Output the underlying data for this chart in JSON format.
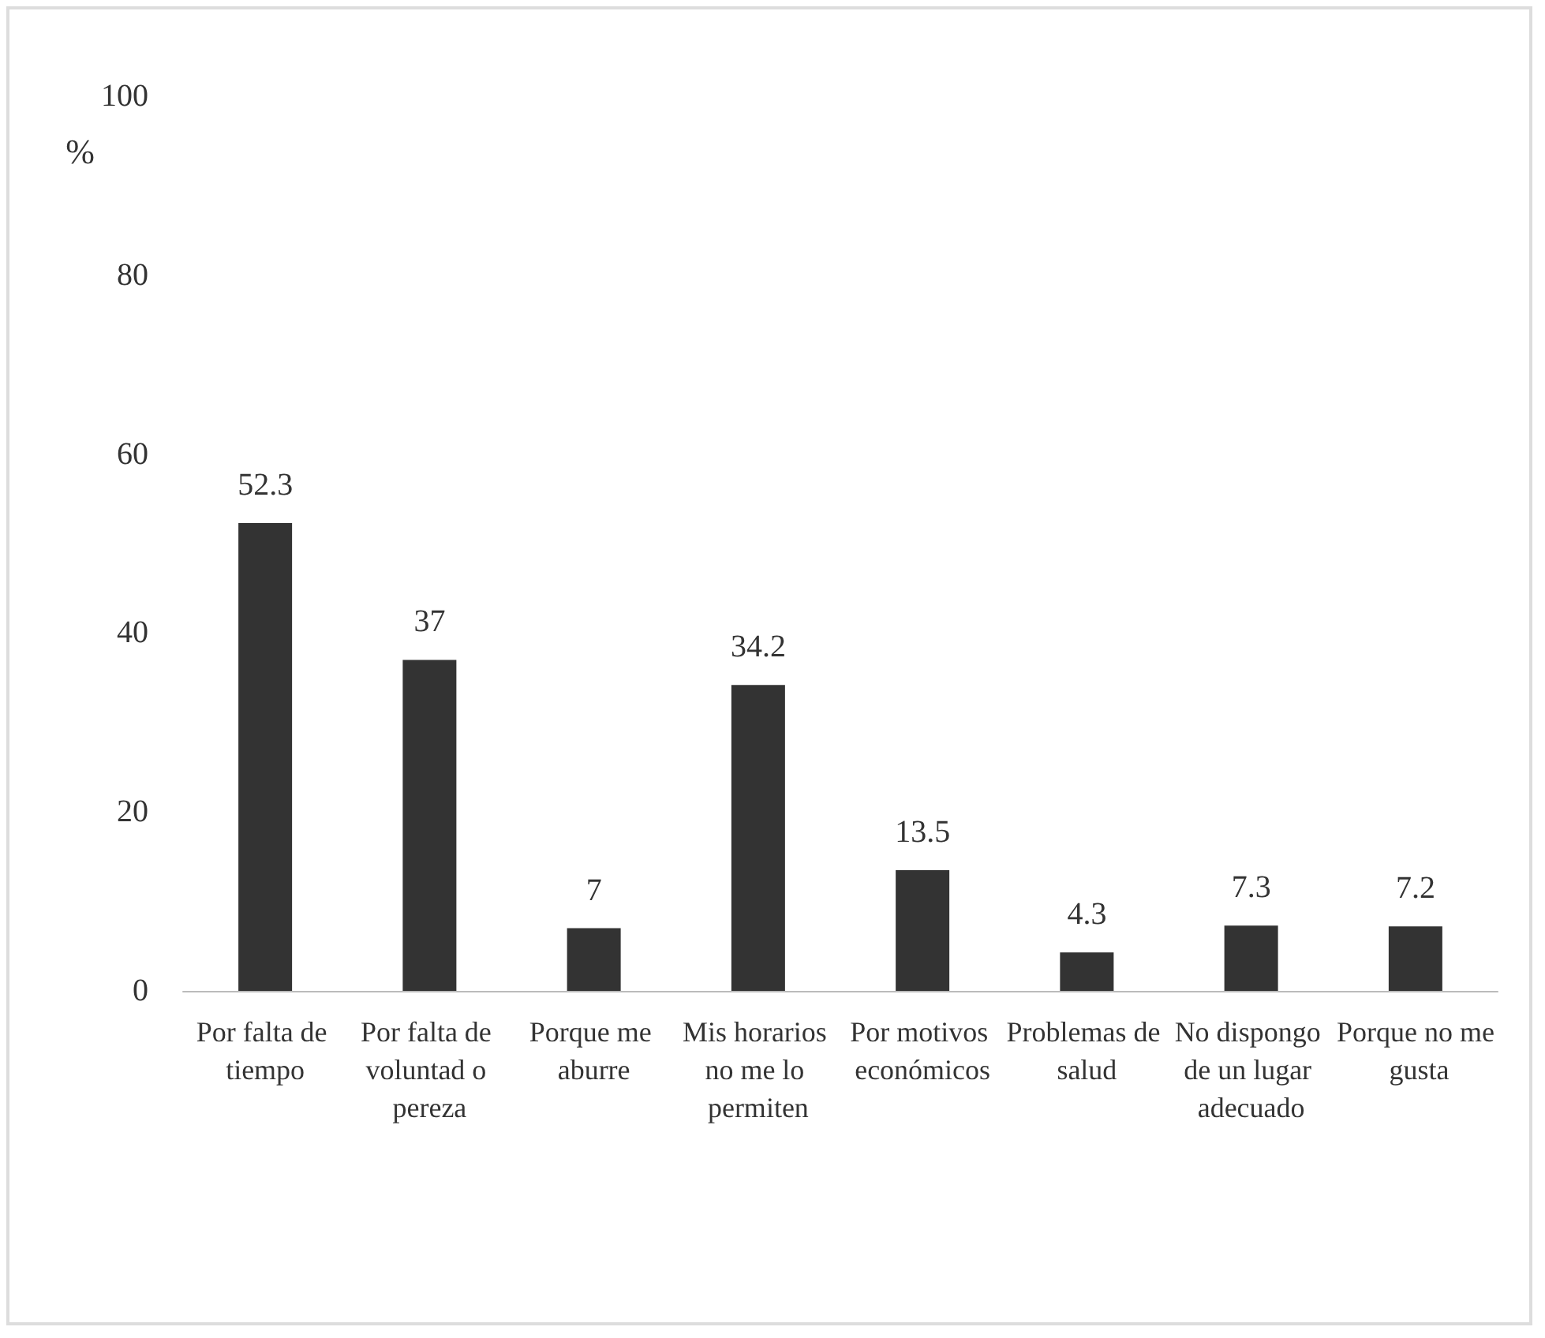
{
  "chart_data": {
    "type": "bar",
    "ylabel": "%",
    "categories": [
      "Por falta de tiempo",
      "Por falta de voluntad o pereza",
      "Porque me aburre",
      "Mis horarios no me lo permiten",
      "Por motivos económicos",
      "Problemas de salud",
      "No dispongo de un lugar adecuado",
      "Porque no me gusta"
    ],
    "values": [
      52.3,
      37,
      7,
      34.2,
      13.5,
      4.3,
      7.3,
      7.2
    ],
    "color": "#333333",
    "ylim": [
      0,
      100
    ],
    "yticks": [
      0,
      20,
      40,
      60,
      80,
      100
    ],
    "grid": false,
    "data_labels": true
  }
}
